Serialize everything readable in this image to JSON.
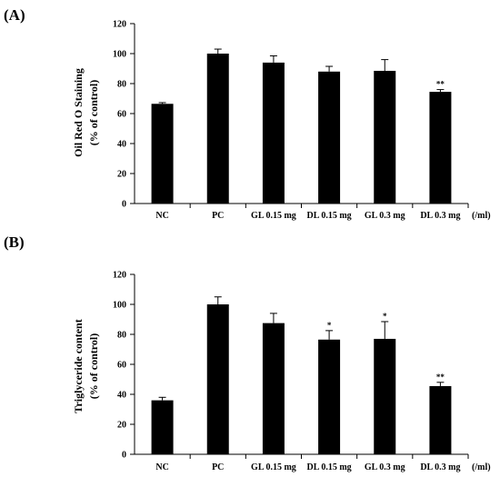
{
  "chart_data": [
    {
      "type": "bar",
      "panel_label": "(A)",
      "ylabel_line1": "Oil Red O Staining",
      "ylabel_line2": "(% of control)",
      "xunit": "(/ml)",
      "categories": [
        "NC",
        "PC",
        "GL 0.15 mg",
        "DL 0.15 mg",
        "GL 0.3 mg",
        "DL 0.3 mg"
      ],
      "values": [
        66.5,
        100,
        94,
        88,
        88.5,
        74.5
      ],
      "errors": [
        0.8,
        3,
        4.5,
        3.5,
        7.5,
        1.5
      ],
      "significance": [
        "",
        "",
        "",
        "",
        "",
        "**"
      ],
      "ylim": [
        0,
        120
      ],
      "yticks": [
        "0",
        "20",
        "40",
        "60",
        "80",
        "100",
        "120"
      ],
      "grid": false,
      "bar_color": "#000000"
    },
    {
      "type": "bar",
      "panel_label": "(B)",
      "ylabel_line1": "Triglyceride content",
      "ylabel_line2": "(% of control)",
      "xunit": "(/ml)",
      "categories": [
        "NC",
        "PC",
        "GL 0.15 mg",
        "DL 0.15 mg",
        "GL 0.3 mg",
        "DL 0.3 mg"
      ],
      "values": [
        36,
        100,
        87.5,
        76.5,
        77,
        45.5
      ],
      "errors": [
        2,
        5,
        6.5,
        6,
        11.5,
        2.5
      ],
      "significance": [
        "",
        "",
        "",
        "*",
        "*",
        "**"
      ],
      "ylim": [
        0,
        120
      ],
      "yticks": [
        "0",
        "20",
        "40",
        "60",
        "80",
        "100",
        "120"
      ],
      "grid": false,
      "bar_color": "#000000"
    }
  ]
}
